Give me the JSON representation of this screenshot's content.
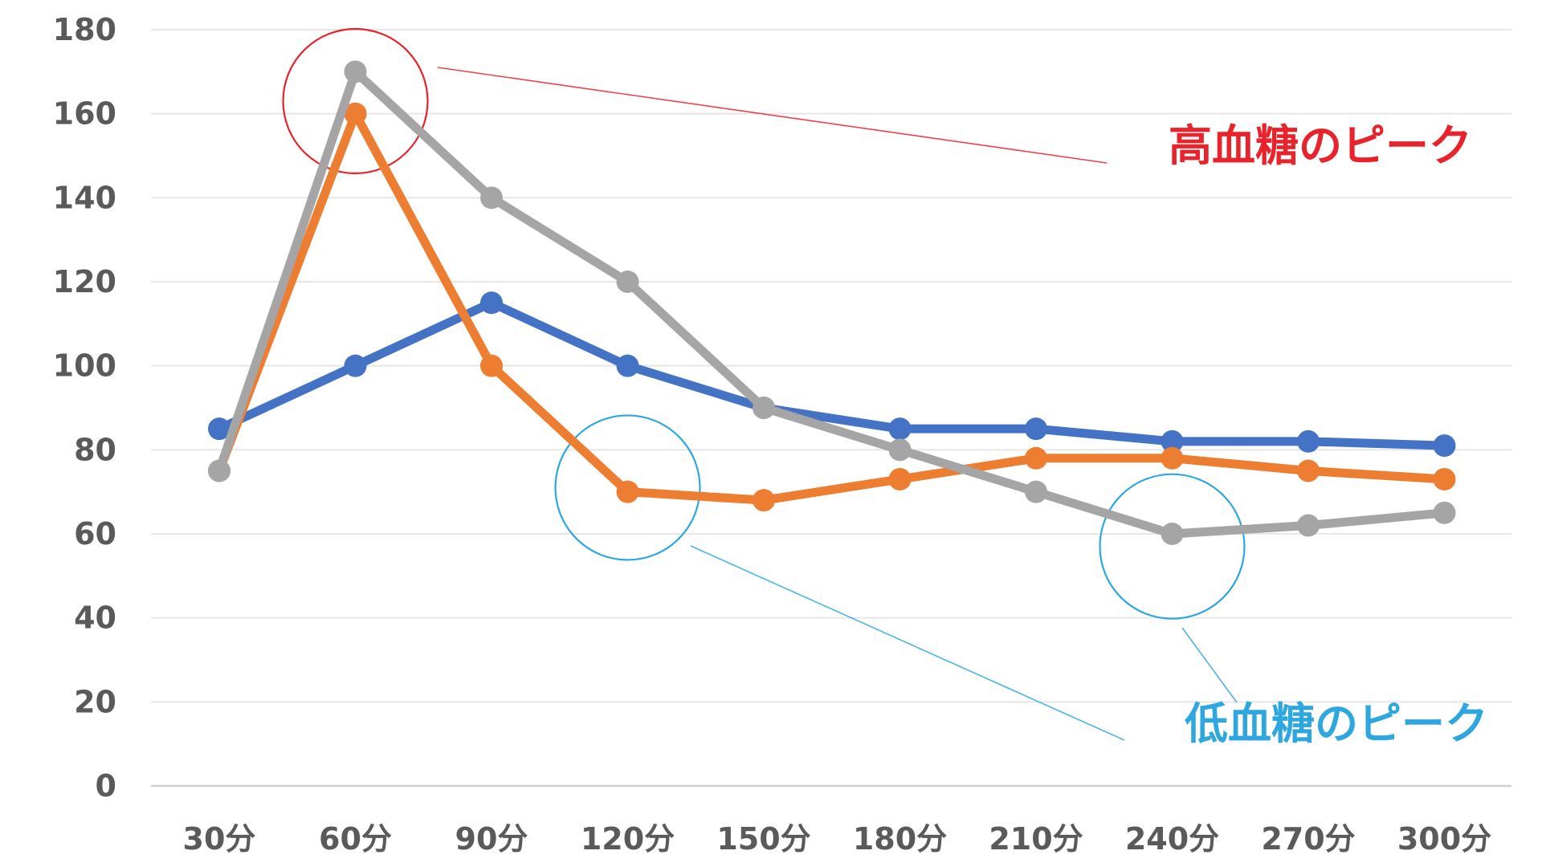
{
  "chart_data": {
    "type": "line",
    "title": "",
    "xlabel": "",
    "ylabel": "",
    "categories": [
      "30分",
      "60分",
      "90分",
      "120分",
      "150分",
      "180分",
      "210分",
      "240分",
      "270分",
      "300分"
    ],
    "y_ticks": [
      "0",
      "20",
      "40",
      "60",
      "80",
      "100",
      "120",
      "140",
      "160",
      "180"
    ],
    "ylim": [
      0,
      180
    ],
    "grid": true,
    "legend": "none",
    "series": [
      {
        "color": "#4472c4",
        "values": [
          85,
          100,
          115,
          100,
          90,
          85,
          85,
          82,
          82,
          81
        ]
      },
      {
        "color": "#ed7d31",
        "values": [
          75,
          160,
          100,
          70,
          68,
          73,
          78,
          78,
          75,
          73
        ]
      },
      {
        "color": "#a5a5a5",
        "values": [
          75,
          170,
          140,
          120,
          90,
          80,
          70,
          60,
          62,
          65
        ]
      }
    ],
    "annotations": [
      {
        "text": "高血糖のピーク",
        "color": "#e8232b",
        "circles": [
          {
            "category_index": 1,
            "value": 163
          }
        ]
      },
      {
        "text": "低血糖のピーク",
        "color": "#2ea7e0",
        "circles": [
          {
            "category_index": 3,
            "value": 71
          },
          {
            "category_index": 7,
            "value": 57
          }
        ]
      }
    ]
  }
}
